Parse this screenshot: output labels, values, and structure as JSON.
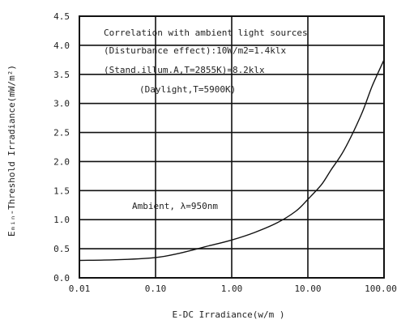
{
  "chart_data": {
    "type": "line",
    "title": "",
    "xlabel": "E-DC Irradiance(w/m )",
    "ylabel": "Eₘᵢₙ-Threshold Irradiance(mW/m²)",
    "x_scale": "log",
    "xlim": [
      0.01,
      100
    ],
    "ylim": [
      0,
      4.5
    ],
    "grid": true,
    "x_ticks": [
      0.01,
      0.1,
      1,
      10,
      100
    ],
    "x_tick_labels": [
      "0.01",
      "0.10",
      "1.00",
      "10.00",
      "100.00"
    ],
    "y_ticks": [
      0,
      0.5,
      1.0,
      1.5,
      2.0,
      2.5,
      3.0,
      3.5,
      4.0,
      4.5
    ],
    "y_tick_labels": [
      "0.0",
      "0.5",
      "1.0",
      "1.5",
      "2.0",
      "2.5",
      "3.0",
      "3.5",
      "4.0",
      "4.5"
    ],
    "annotations": {
      "heading": "Correlation with ambient light sources",
      "line1": "(Disturbance effect):10W/m2=1.4klx",
      "line2": "(Stand.illum.A,T=2855K)=8.2klx",
      "line3": "(Daylight,T=5900K)",
      "ambient": "Ambient, λ=950nm"
    },
    "series": [
      {
        "x": [
          0.01,
          0.03,
          0.1,
          0.2,
          0.5,
          1,
          2,
          4,
          7,
          10,
          15,
          20,
          30,
          50,
          70,
          100
        ],
        "y": [
          0.3,
          0.31,
          0.35,
          0.42,
          0.55,
          0.65,
          0.78,
          0.95,
          1.15,
          1.35,
          1.6,
          1.85,
          2.2,
          2.8,
          3.3,
          3.75
        ]
      }
    ]
  }
}
